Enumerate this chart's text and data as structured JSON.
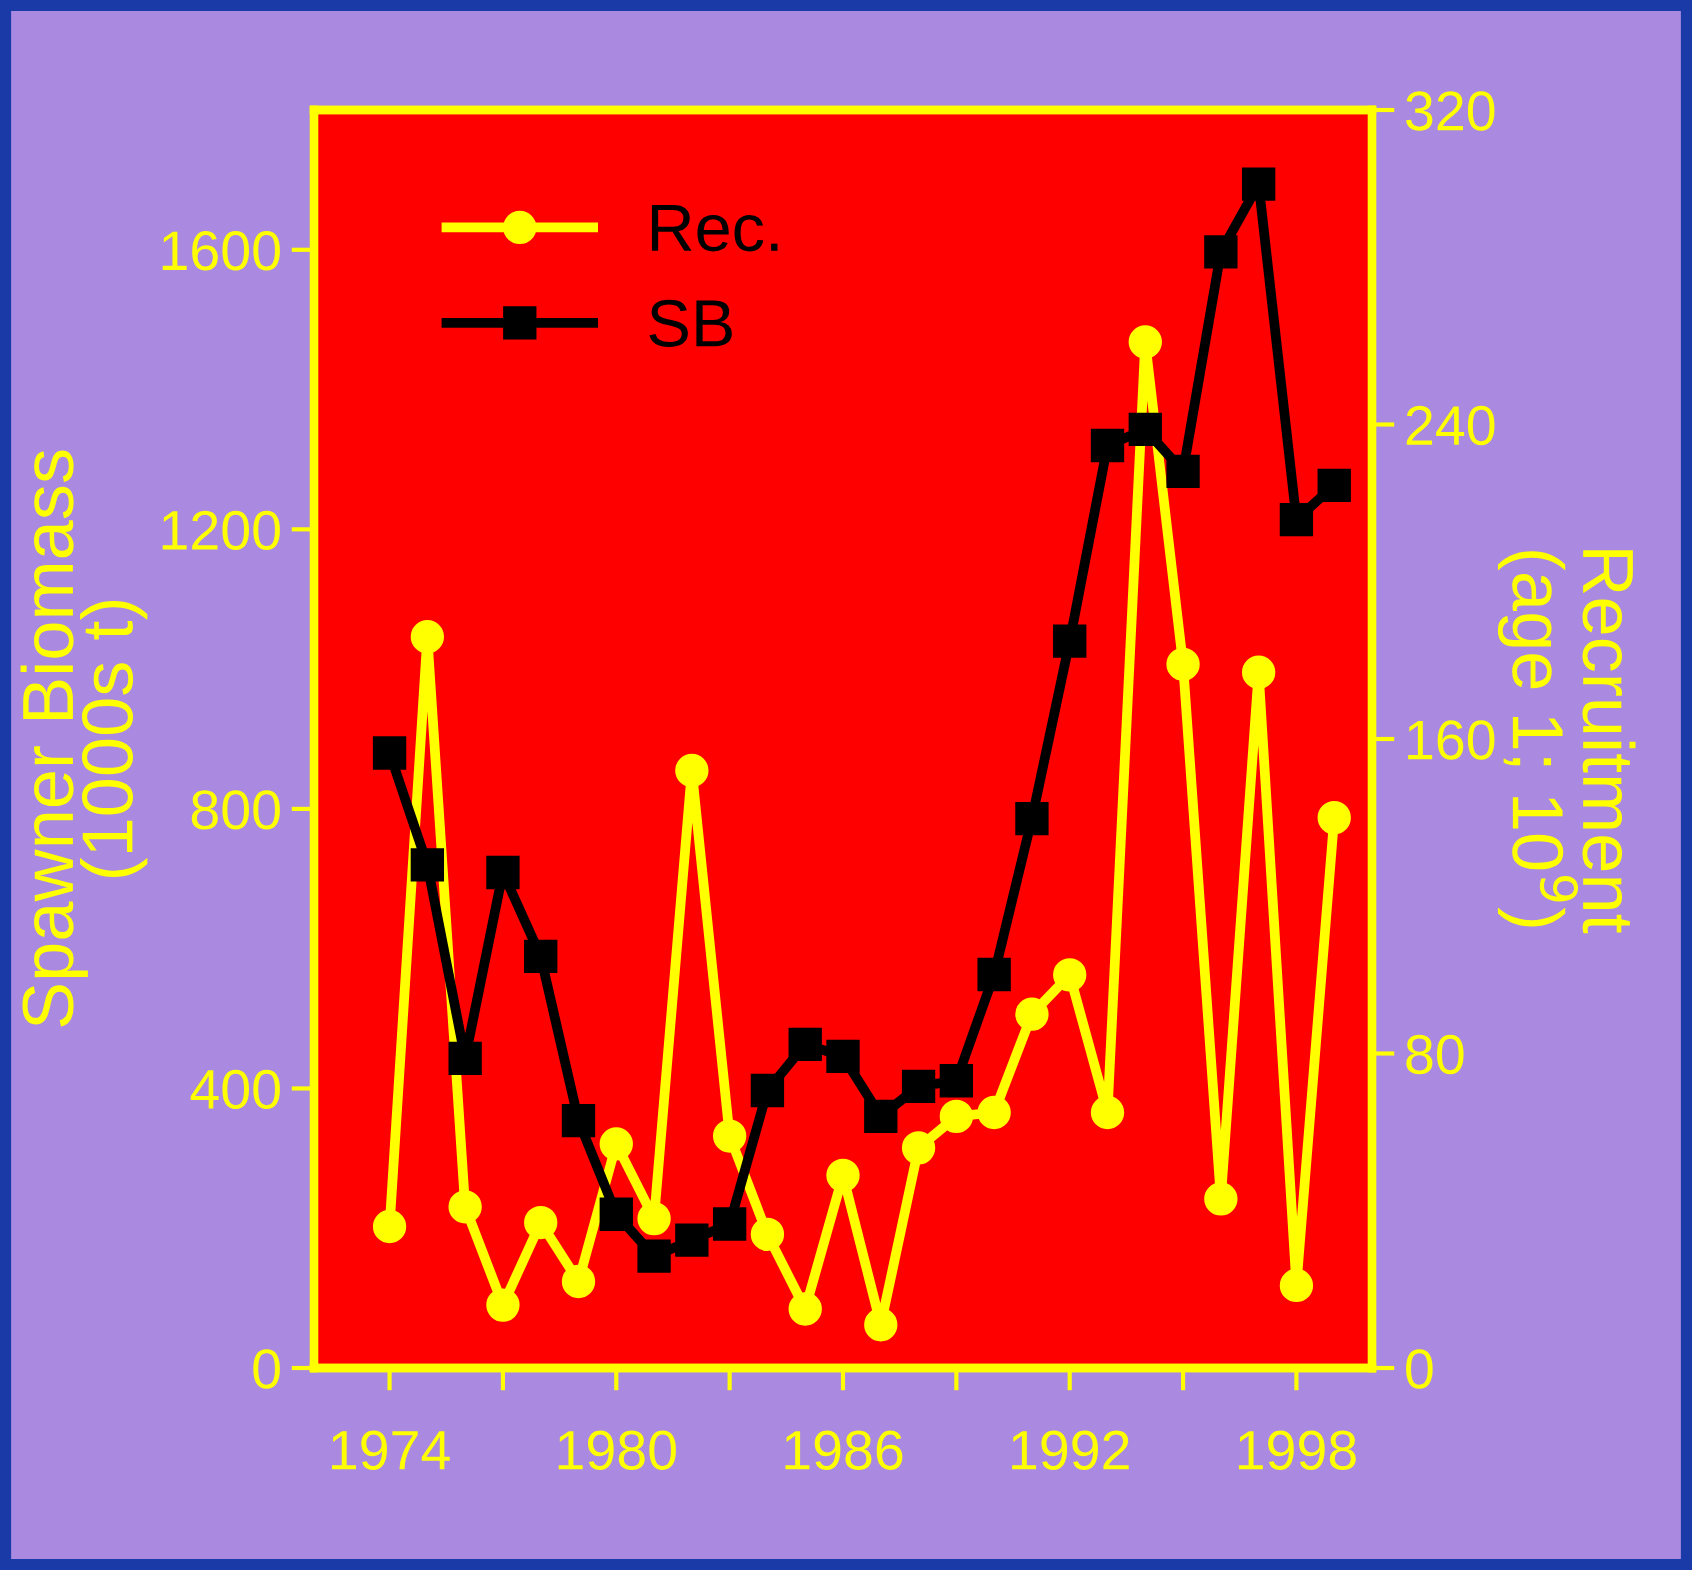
{
  "chart_data": {
    "type": "line",
    "ylabel": "Spawner Biomass\n(1000s t)",
    "y2label": "Recruitment\n(age 1; 10$^{9}$)",
    "x": [
      1974,
      1975,
      1976,
      1977,
      1978,
      1979,
      1980,
      1981,
      1982,
      1983,
      1984,
      1985,
      1986,
      1987,
      1988,
      1989,
      1990,
      1991,
      1992,
      1993,
      1994,
      1995,
      1996,
      1997,
      1998,
      1999
    ],
    "series": [
      {
        "name": "Rec.",
        "color": "#ffff00",
        "axis": "y2",
        "marker": "circle",
        "values": [
          36,
          186,
          41,
          16,
          37,
          22,
          57,
          38,
          152,
          59,
          34,
          15,
          49,
          11,
          56,
          64,
          65,
          90,
          100,
          65,
          261,
          179,
          43,
          177,
          21,
          140
        ]
      },
      {
        "name": "SB",
        "color": "#000000",
        "axis": "y",
        "marker": "square",
        "values": [
          880,
          720,
          443,
          709,
          589,
          354,
          220,
          160,
          183,
          206,
          397,
          463,
          446,
          360,
          403,
          411,
          563,
          786,
          1040,
          1320,
          1343,
          1283,
          1597,
          1694,
          1214,
          1263
        ]
      }
    ],
    "xlim": [
      1972,
      2000
    ],
    "xticks": [
      1974,
      {
        "value": 1977,
        "label": null
      },
      1980,
      {
        "value": 1983,
        "label": null
      },
      1986,
      {
        "value": 1989,
        "label": null
      },
      1992,
      {
        "value": 1995,
        "label": null
      },
      1998
    ],
    "ylim": [
      0,
      1800
    ],
    "yticks": [
      0,
      400,
      800,
      1200,
      1600
    ],
    "y2lim": [
      0,
      320
    ],
    "y2ticks": [
      0,
      80,
      160,
      240,
      320
    ],
    "legend": "top left",
    "grid": false,
    "line_style": "solid"
  }
}
